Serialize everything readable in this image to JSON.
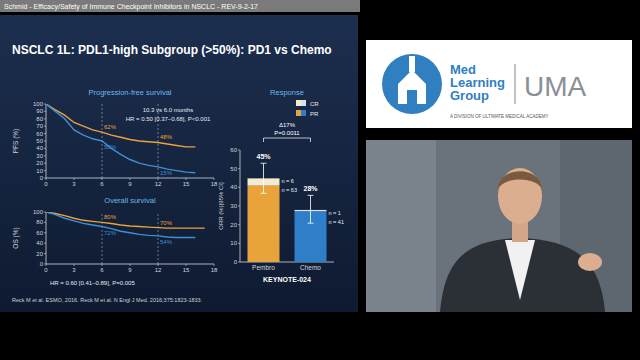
{
  "page": {
    "header": "Schmid - Efficacy/Safety of Immune Checkpoint Inhibitors in NSCLC - REV-9-2-17",
    "slide_title": "NSCLC 1L: PDL1-high Subgroup (>50%): PD1 vs Chemo",
    "citation": "Reck M et al. ESMO, 2016. Reck M et al. N Engl J Med. 2016;375:1823-1833.",
    "logo": {
      "name": [
        "Med",
        "Learning",
        "Group"
      ],
      "brand": "UMA",
      "tagline": "A DIVISION OF ULTIMATE MEDICAL ACADEMY"
    }
  },
  "chart_data": [
    {
      "type": "line",
      "title": "Progression-free survival",
      "y_label": "PFS (%)",
      "x": [
        0,
        1,
        2,
        3,
        4,
        5,
        6,
        7,
        8,
        9,
        10,
        11,
        12,
        13,
        14,
        15,
        16
      ],
      "series": [
        {
          "color": "#e8a33a",
          "values": [
            100,
            92,
            85,
            75,
            70,
            65,
            62,
            58,
            55,
            52,
            50,
            49,
            48,
            46,
            44,
            42,
            42
          ]
        },
        {
          "color": "#3f8fd2",
          "values": [
            100,
            90,
            80,
            65,
            58,
            53,
            50,
            40,
            32,
            25,
            20,
            17,
            15,
            12,
            10,
            8,
            7
          ]
        }
      ],
      "xlim": [
        0,
        18
      ],
      "xticks": [
        0,
        3,
        6,
        9,
        12,
        15,
        18
      ],
      "ylim": [
        0,
        100
      ],
      "yticks": [
        0,
        10,
        20,
        30,
        40,
        50,
        60,
        70,
        80,
        90,
        100
      ],
      "grid": false,
      "line_style": "solid",
      "landmarks": [
        {
          "x": 6,
          "values": [
            62,
            50
          ],
          "labels": [
            "62%",
            "50%"
          ]
        },
        {
          "x": 12,
          "values": [
            48,
            15
          ],
          "labels": [
            "48%",
            "15%"
          ]
        }
      ],
      "annotations": [
        "10.3 vs 6.0 months",
        "HR = 0.50 [0.37–0.68], P<0.001"
      ]
    },
    {
      "type": "line",
      "title": "Overall survival",
      "x": [
        0,
        1,
        2,
        3,
        4,
        5,
        6,
        7,
        8,
        9,
        10,
        11,
        12,
        13,
        14,
        15,
        16,
        17
      ],
      "series": [
        {
          "color": "#e8a33a",
          "values": [
            100,
            97,
            93,
            88,
            84,
            82,
            80,
            78,
            75,
            73,
            72,
            71,
            70,
            69,
            69,
            69,
            69,
            69
          ]
        },
        {
          "color": "#3f8fd2",
          "values": [
            100,
            95,
            88,
            83,
            78,
            75,
            72,
            68,
            63,
            60,
            57,
            55,
            54,
            52,
            51,
            51,
            51,
            null
          ]
        }
      ],
      "xlim": [
        0,
        18
      ],
      "xticks": [
        0,
        3,
        6,
        9,
        12,
        15,
        18
      ],
      "ylim": [
        0,
        100
      ],
      "yticks": [
        0,
        20,
        40,
        60,
        80,
        100
      ],
      "grid": false,
      "line_style": "solid",
      "y_label": "OS (%)",
      "landmarks": [
        {
          "x": 6,
          "values": [
            80,
            72
          ],
          "labels": [
            "80%",
            "72%"
          ]
        },
        {
          "x": 12,
          "values": [
            70,
            54
          ],
          "labels": [
            "70%",
            "54%"
          ]
        }
      ],
      "annotations": [
        "HR = 0.60 [0.41–0.89], P=0.005"
      ]
    },
    {
      "type": "bar",
      "title": "Response",
      "y_label": "ORR (%)[95% CI]",
      "categories": [
        "Pembro",
        "Chemo"
      ],
      "stacked": true,
      "legend": "top",
      "series": [
        {
          "name": "PR",
          "colors": [
            "#e8a33a",
            "#2f7fc8"
          ],
          "values": [
            40.9,
            27.2
          ],
          "n_labels": [
            "n = 63",
            "n = 41"
          ]
        },
        {
          "name": "CR",
          "colors": [
            "#f6ebcd",
            "#d3e3f2"
          ],
          "values": [
            3.9,
            0.7
          ],
          "n_labels": [
            "n = 6",
            "n = 1"
          ]
        }
      ],
      "totals": [
        44.8,
        27.8
      ],
      "total_labels": [
        "45%",
        "28%"
      ],
      "error_low": [
        36.8,
        20.8
      ],
      "error_high": [
        52.9,
        35.7
      ],
      "ylim": [
        0,
        60
      ],
      "yticks": [
        0,
        10,
        20,
        30,
        40,
        50,
        60
      ],
      "grid": false,
      "bracket_labels": [
        "P=0.0011",
        "Δ17%"
      ],
      "footer": "KEYNOTE-024"
    }
  ]
}
